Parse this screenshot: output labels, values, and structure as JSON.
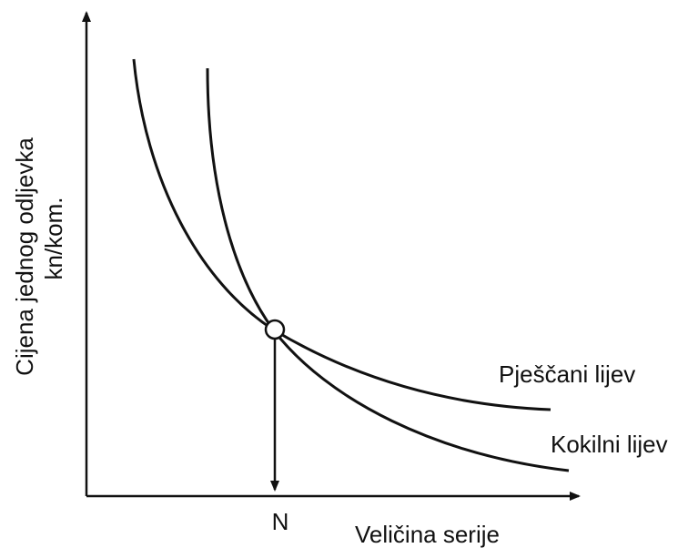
{
  "y_axis_label": {
    "line1": "Cijena jednog odljevka",
    "line2": "kn/kom."
  },
  "x_axis_label": "Veličina serije",
  "marker_label": "N",
  "curves": [
    {
      "label": "Pješčani lijev"
    },
    {
      "label": "Kokilni lijev"
    }
  ]
}
